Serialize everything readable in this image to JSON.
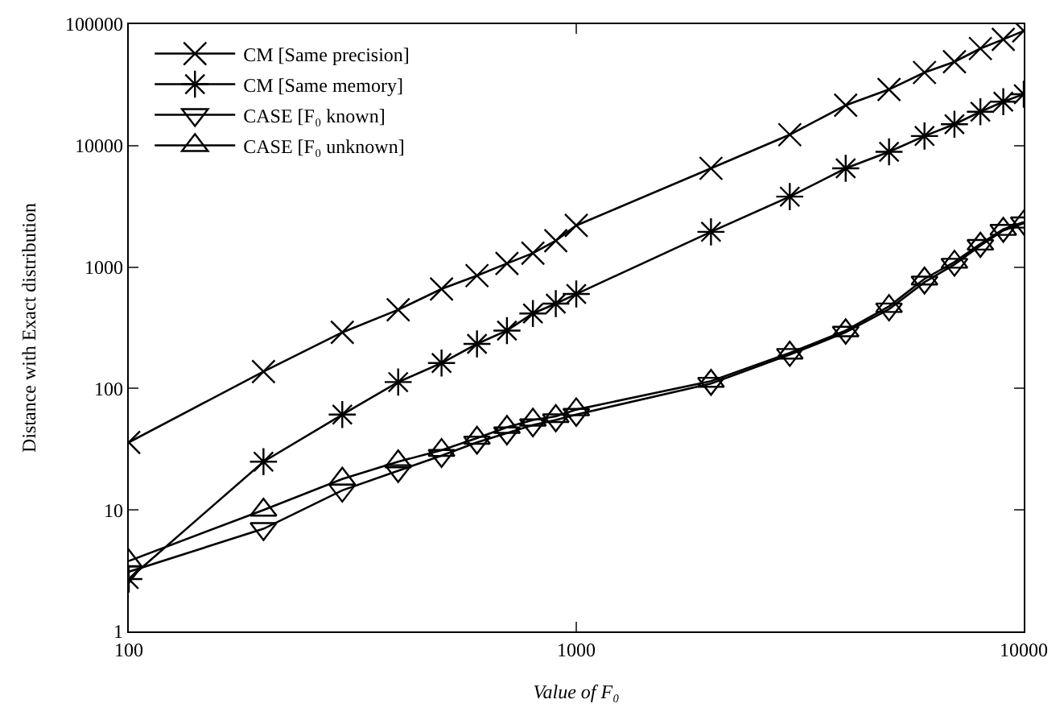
{
  "chart_data": {
    "type": "line",
    "xlabel": "Value of F₀",
    "ylabel": "Distance with Exact distribution",
    "x": [
      100,
      200,
      300,
      400,
      500,
      600,
      700,
      800,
      900,
      1000,
      2000,
      3000,
      4000,
      5000,
      6000,
      7000,
      8000,
      9000,
      10000
    ],
    "series": [
      {
        "name": "CM [Same precision]",
        "color": "#000000",
        "marker": "cross",
        "values": [
          36,
          138,
          290,
          445,
          660,
          850,
          1070,
          1300,
          1650,
          2200,
          6500,
          12300,
          21500,
          29000,
          40000,
          49000,
          63000,
          75000,
          88000
        ]
      },
      {
        "name": "CM [Same memory]",
        "color": "#000000",
        "marker": "cross",
        "values": [
          2.7,
          25,
          61,
          113,
          162,
          233,
          300,
          415,
          500,
          600,
          1950,
          3800,
          6500,
          8900,
          12000,
          15000,
          19000,
          23000,
          26500
        ]
      },
      {
        "name": "CASE [F₀ known]",
        "color": "#000000",
        "marker": "triangle-down",
        "values": [
          3.1,
          7,
          14.5,
          21,
          28,
          36,
          43,
          50,
          55,
          61,
          110,
          190,
          290,
          450,
          750,
          1050,
          1500,
          2000,
          2300
        ]
      },
      {
        "name": "CASE [F₀ unknown]",
        "color": "#000000",
        "marker": "triangle",
        "values": [
          3.8,
          10,
          18,
          25,
          31,
          39,
          48,
          55,
          59,
          67,
          115,
          196,
          300,
          475,
          800,
          1100,
          1550,
          2050,
          2350
        ]
      }
    ],
    "log": "xy",
    "xlim": [
      100,
      10000
    ],
    "ylim": [
      1,
      100000
    ],
    "xticks": [
      100,
      1000,
      10000
    ],
    "yticks": [
      1,
      10,
      100,
      1000,
      10000,
      100000
    ],
    "legend": "top left",
    "line_style": "solid"
  }
}
